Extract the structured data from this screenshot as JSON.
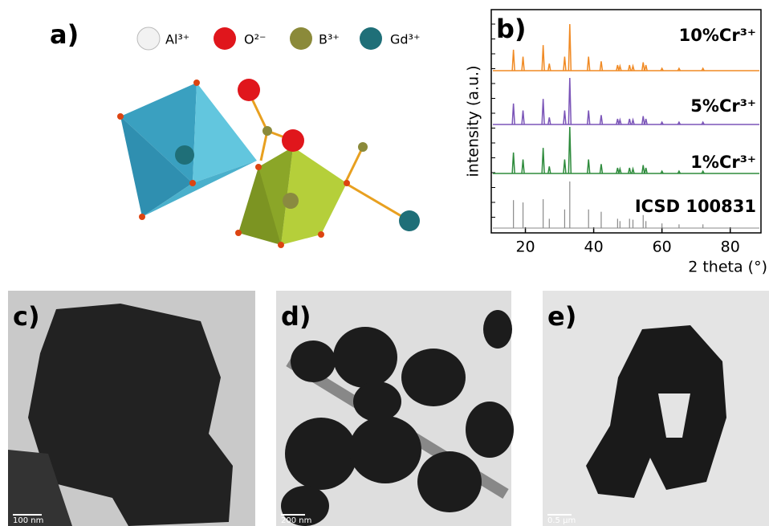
{
  "panel_a": {
    "label": "a)",
    "legend": [
      "Al³⁺",
      "O²⁻",
      "B³⁺",
      "Gd³⁺"
    ]
  },
  "chart_data": {
    "type": "line",
    "label": "b)",
    "y_label": "intensity (a.u.)",
    "x_label": "2 theta (°)",
    "xlim": [
      10,
      89
    ],
    "xticks": [
      20,
      40,
      60,
      80
    ],
    "ylim": [
      0,
      100
    ],
    "x": [
      16.5,
      19.3,
      25.2,
      27,
      31.5,
      33,
      38.5,
      42.2,
      47,
      47.7,
      50.5,
      51.5,
      54.5,
      55.3,
      60,
      65,
      72
    ],
    "series": [
      {
        "name": "10%Cr³⁺",
        "color": "#f08a24",
        "values": [
          45,
          30,
          55,
          15,
          30,
          100,
          30,
          20,
          12,
          10,
          12,
          10,
          18,
          12,
          5,
          5,
          5
        ]
      },
      {
        "name": "5%Cr³⁺",
        "color": "#7b55b8",
        "values": [
          45,
          30,
          55,
          15,
          30,
          100,
          30,
          20,
          12,
          10,
          12,
          10,
          18,
          12,
          5,
          5,
          5
        ]
      },
      {
        "name": "1%Cr³⁺",
        "color": "#2e8b3c",
        "values": [
          45,
          30,
          55,
          15,
          30,
          100,
          30,
          20,
          12,
          10,
          12,
          10,
          18,
          12,
          5,
          5,
          5
        ]
      },
      {
        "name": "ICSD 100831",
        "color": "#8a8a8a",
        "style": "sticks",
        "values": [
          60,
          55,
          62,
          20,
          40,
          100,
          40,
          35,
          20,
          15,
          20,
          18,
          28,
          15,
          10,
          8,
          8
        ]
      }
    ]
  },
  "tem": [
    {
      "label": "c)",
      "scale_bar": "100 nm"
    },
    {
      "label": "d)",
      "scale_bar": "200 nm"
    },
    {
      "label": "e)",
      "scale_bar": "0.5 μm"
    }
  ]
}
